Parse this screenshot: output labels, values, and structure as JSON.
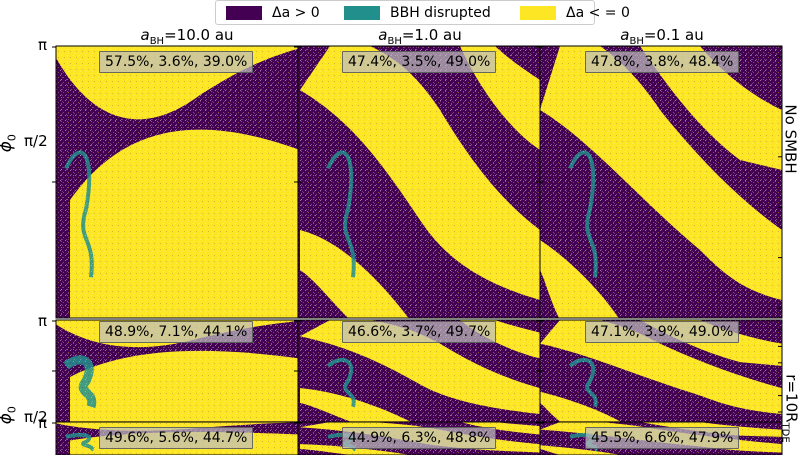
{
  "colors": {
    "increase": "#440154",
    "disrupted": "#21908d",
    "decrease": "#fde725"
  },
  "legend": [
    {
      "label": "Δa > 0",
      "color": "#440154"
    },
    {
      "label": "BBH disrupted",
      "color": "#21908d"
    },
    {
      "label": "Δa < = 0",
      "color": "#fde725"
    }
  ],
  "columns": [
    {
      "prefix": "a",
      "sub": "BH",
      "suffix": "=10.0 au"
    },
    {
      "prefix": "a",
      "sub": "BH",
      "suffix": "=1.0 au"
    },
    {
      "prefix": "a",
      "sub": "BH",
      "suffix": "=0.1 au"
    }
  ],
  "rows": [
    {
      "label": "No SMBH",
      "label_prefix": "",
      "label_sub": "",
      "label_suffix": ""
    },
    {
      "label": "",
      "label_prefix": "r=10R",
      "label_sub": "TDE",
      "label_suffix": ""
    },
    {
      "label": "",
      "label_prefix": "",
      "label_sub": "",
      "label_suffix": ""
    }
  ],
  "y_axis": {
    "symbol": "ϕ",
    "sub": "0",
    "ticks": [
      "π",
      "π/2"
    ]
  },
  "chart_data": {
    "type": "heatmap",
    "categories": [
      "Δa > 0",
      "BBH disrupted",
      "Δa < = 0"
    ],
    "panels": [
      {
        "row": 0,
        "col": 0,
        "annotation": "57.5%, 3.6%, 39.0%",
        "values": [
          57.5,
          3.6,
          39.0
        ]
      },
      {
        "row": 0,
        "col": 1,
        "annotation": "47.4%, 3.5%, 49.0%",
        "values": [
          47.4,
          3.5,
          49.0
        ]
      },
      {
        "row": 0,
        "col": 2,
        "annotation": "47.8%, 3.8%, 48.4%",
        "values": [
          47.8,
          3.8,
          48.4
        ]
      },
      {
        "row": 1,
        "col": 0,
        "annotation": "48.9%, 7.1%, 44.1%",
        "values": [
          48.9,
          7.1,
          44.1
        ]
      },
      {
        "row": 1,
        "col": 1,
        "annotation": "46.6%, 3.7%, 49.7%",
        "values": [
          46.6,
          3.7,
          49.7
        ]
      },
      {
        "row": 1,
        "col": 2,
        "annotation": "47.1%, 3.9%, 49.0%",
        "values": [
          47.1,
          3.9,
          49.0
        ]
      },
      {
        "row": 2,
        "col": 0,
        "annotation": "49.6%, 5.6%, 44.7%",
        "values": [
          49.6,
          5.6,
          44.7
        ]
      },
      {
        "row": 2,
        "col": 1,
        "annotation": "44.9%, 6.3%, 48.8%",
        "values": [
          44.9,
          6.3,
          48.8
        ]
      },
      {
        "row": 2,
        "col": 2,
        "annotation": "45.5%, 6.6%, 47.9%",
        "values": [
          45.5,
          6.6,
          47.9
        ]
      }
    ]
  }
}
